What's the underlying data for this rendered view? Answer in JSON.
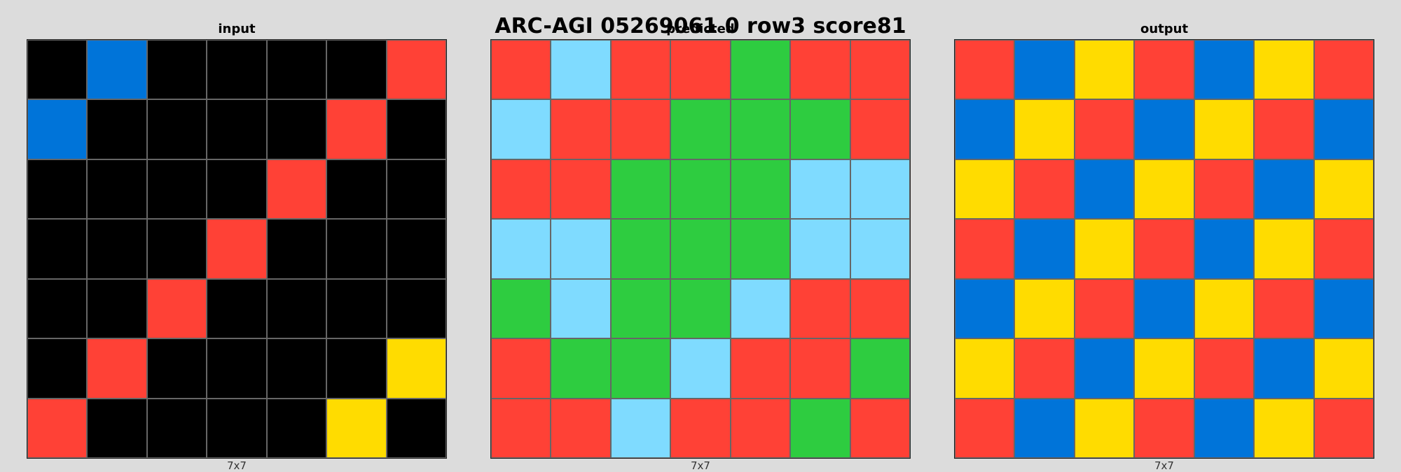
{
  "title": "ARC-AGI 05269061 0 row3 score81",
  "palette": {
    "0": "#000000",
    "1": "#0074D9",
    "2": "#FF4136",
    "3": "#2ECC40",
    "4": "#FFDC00",
    "8": "#7FDBFF"
  },
  "panels": [
    {
      "label": "input",
      "dims": "7x7",
      "grid": [
        [
          0,
          1,
          0,
          0,
          0,
          0,
          2
        ],
        [
          1,
          0,
          0,
          0,
          0,
          2,
          0
        ],
        [
          0,
          0,
          0,
          0,
          2,
          0,
          0
        ],
        [
          0,
          0,
          0,
          2,
          0,
          0,
          0
        ],
        [
          0,
          0,
          2,
          0,
          0,
          0,
          0
        ],
        [
          0,
          2,
          0,
          0,
          0,
          0,
          4
        ],
        [
          2,
          0,
          0,
          0,
          0,
          4,
          0
        ]
      ]
    },
    {
      "label": "predicted",
      "dims": "7x7",
      "grid": [
        [
          2,
          8,
          2,
          2,
          3,
          2,
          2
        ],
        [
          8,
          2,
          2,
          3,
          3,
          3,
          2
        ],
        [
          2,
          2,
          3,
          3,
          3,
          8,
          8
        ],
        [
          8,
          8,
          3,
          3,
          3,
          8,
          8
        ],
        [
          3,
          8,
          3,
          3,
          8,
          2,
          2
        ],
        [
          2,
          3,
          3,
          8,
          2,
          2,
          3
        ],
        [
          2,
          2,
          8,
          2,
          2,
          3,
          2
        ]
      ]
    },
    {
      "label": "output",
      "dims": "7x7",
      "grid": [
        [
          2,
          1,
          4,
          2,
          1,
          4,
          2
        ],
        [
          1,
          4,
          2,
          1,
          4,
          2,
          1
        ],
        [
          4,
          2,
          1,
          4,
          2,
          1,
          4
        ],
        [
          2,
          1,
          4,
          2,
          1,
          4,
          2
        ],
        [
          1,
          4,
          2,
          1,
          4,
          2,
          1
        ],
        [
          4,
          2,
          1,
          4,
          2,
          1,
          4
        ],
        [
          2,
          1,
          4,
          2,
          1,
          4,
          2
        ]
      ]
    }
  ]
}
